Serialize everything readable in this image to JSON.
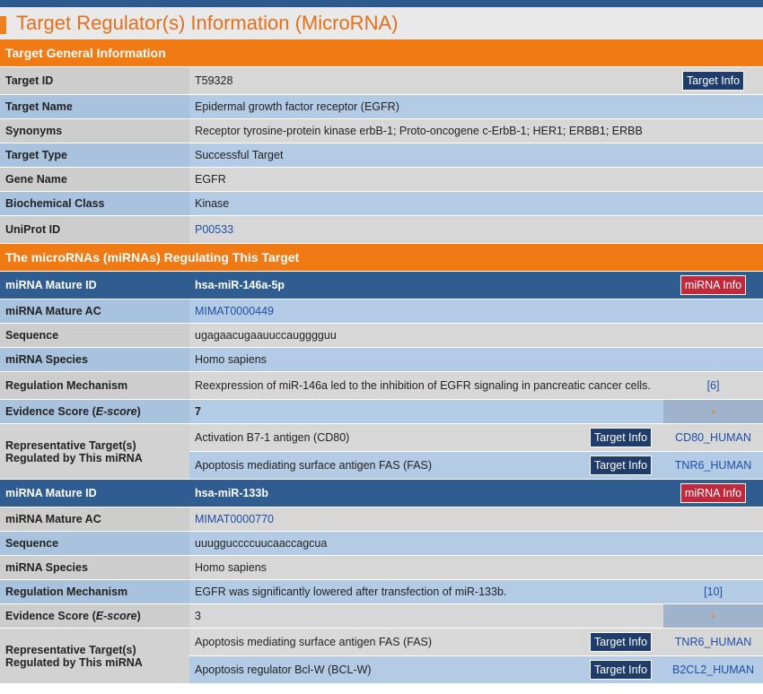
{
  "page_title": "Target Regulator(s) Information (MicroRNA)",
  "general": {
    "section_title": "Target General Information",
    "target_info_button": "Target Info",
    "rows": [
      {
        "label": "Target ID",
        "value": "T59328"
      },
      {
        "label": "Target Name",
        "value": "Epidermal growth factor receptor (EGFR)"
      },
      {
        "label": "Synonyms",
        "value": "Receptor tyrosine-protein kinase erbB-1; Proto-oncogene c-ErbB-1; HER1; ERBB1; ERBB"
      },
      {
        "label": "Target Type",
        "value": "Successful Target"
      },
      {
        "label": "Gene Name",
        "value": "EGFR"
      },
      {
        "label": "Biochemical Class",
        "value": "Kinase"
      },
      {
        "label": "UniProt ID",
        "value": "P00533"
      }
    ]
  },
  "mirna_section_title": "The microRNAs (miRNAs) Regulating This Target",
  "labels": {
    "mature_id": "miRNA Mature ID",
    "mature_ac": "miRNA Mature AC",
    "sequence": "Sequence",
    "species": "miRNA Species",
    "mechanism": "Regulation Mechanism",
    "score_prefix": "Evidence Score (",
    "score_italic": "E-score",
    "score_suffix": ")",
    "rep_targets": "Representative Target(s) Regulated by This miRNA",
    "mirna_info_button": "miRNA Info",
    "target_info_button": "Target Info",
    "plus": "+"
  },
  "mirnas": [
    {
      "mature_id": "hsa-miR-146a-5p",
      "mature_ac": "MIMAT0000449",
      "sequence": "ugagaacugaauuccaugggguu",
      "species": "Homo sapiens",
      "mechanism": "Reexpression of miR-146a led to the inhibition of EGFR signaling in pancreatic cancer cells.",
      "ref": "[6]",
      "score": "7",
      "targets": [
        {
          "name": "Activation B7-1 antigen (CD80)",
          "uniprot": "CD80_HUMAN"
        },
        {
          "name": "Apoptosis mediating surface antigen FAS (FAS)",
          "uniprot": "TNR6_HUMAN"
        }
      ]
    },
    {
      "mature_id": "hsa-miR-133b",
      "mature_ac": "MIMAT0000770",
      "sequence": "uuugguccccuucaaccagcua",
      "species": "Homo sapiens",
      "mechanism": "EGFR was significantly lowered after transfection of miR-133b.",
      "ref": "[10]",
      "score": "3",
      "targets": [
        {
          "name": "Apoptosis mediating surface antigen FAS (FAS)",
          "uniprot": "TNR6_HUMAN"
        },
        {
          "name": "Apoptosis regulator Bcl-W (BCL-W)",
          "uniprot": "B2CL2_HUMAN"
        }
      ]
    }
  ]
}
